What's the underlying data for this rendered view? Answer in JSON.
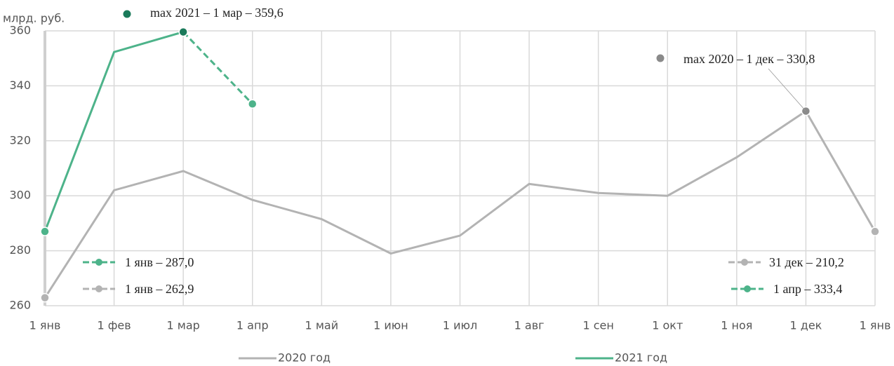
{
  "chart_data": {
    "type": "line",
    "y_label": "млрд. руб.",
    "categories": [
      "1 янв",
      "1 фев",
      "1 мар",
      "1 апр",
      "1 май",
      "1 июн",
      "1 июл",
      "1 авг",
      "1 сен",
      "1 окт",
      "1 ноя",
      "1 дек",
      "1 янв"
    ],
    "series": [
      {
        "name": "2020 год",
        "color": "#b3b3b3",
        "values": [
          262.9,
          302,
          309,
          298.5,
          291.5,
          279,
          285.5,
          304.3,
          301,
          300,
          314,
          330.8,
          287
        ]
      },
      {
        "name": "2021 год",
        "color": "#4db38a",
        "values": [
          287.0,
          352.3,
          359.6,
          333.4,
          null,
          null,
          null,
          null,
          null,
          null,
          null,
          null,
          null
        ],
        "dashed_last_segment": true
      }
    ],
    "ylim": [
      260,
      360
    ],
    "yticks": [
      260,
      280,
      300,
      320,
      340,
      360
    ],
    "grid": true,
    "annotations": [
      "max 2021 – 1 мар – 359,6",
      "max 2020 – 1 дек – 330,8",
      "1 янв –  287,0",
      "1 янв – 262,9",
      "31 дек – 210,2",
      "1 апр – 333,4"
    ]
  }
}
